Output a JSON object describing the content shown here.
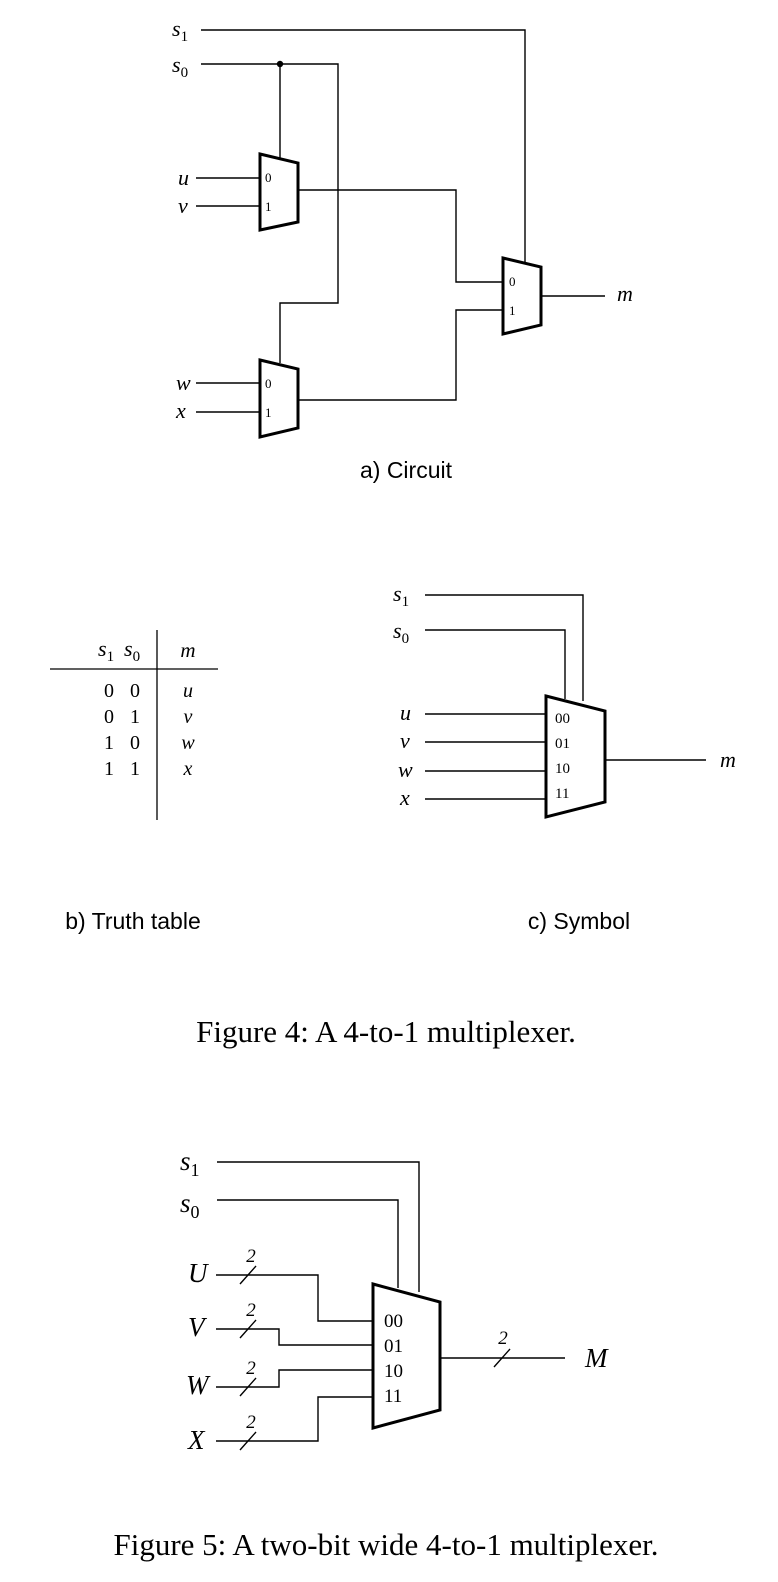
{
  "figure4": {
    "circuit": {
      "signals": {
        "s1": {
          "base": "s",
          "sub": "1"
        },
        "s0": {
          "base": "s",
          "sub": "0"
        },
        "u": "u",
        "v": "v",
        "w": "w",
        "x": "x",
        "m": "m"
      },
      "port0": "0",
      "port1": "1",
      "caption": "a) Circuit"
    },
    "truth_table": {
      "header_s1": {
        "base": "s",
        "sub": "1"
      },
      "header_s0": {
        "base": "s",
        "sub": "0"
      },
      "header_m": "m",
      "rows": [
        {
          "s1": "0",
          "s0": "0",
          "m": "u"
        },
        {
          "s1": "0",
          "s0": "1",
          "m": "v"
        },
        {
          "s1": "1",
          "s0": "0",
          "m": "w"
        },
        {
          "s1": "1",
          "s0": "1",
          "m": "x"
        }
      ],
      "caption": "b) Truth table"
    },
    "symbol": {
      "signals": {
        "s1": {
          "base": "s",
          "sub": "1"
        },
        "s0": {
          "base": "s",
          "sub": "0"
        },
        "u": "u",
        "v": "v",
        "w": "w",
        "x": "x",
        "m": "m"
      },
      "ports": [
        "00",
        "01",
        "10",
        "11"
      ],
      "caption": "c) Symbol"
    },
    "title": "Figure 4: A 4-to-1 multiplexer."
  },
  "figure5": {
    "signals": {
      "s1": {
        "base": "s",
        "sub": "1"
      },
      "s0": {
        "base": "s",
        "sub": "0"
      },
      "U": "U",
      "V": "V",
      "W": "W",
      "X": "X",
      "M": "M"
    },
    "bus_width": "2",
    "ports": [
      "00",
      "01",
      "10",
      "11"
    ],
    "title": "Figure 5: A two-bit wide 4-to-1 multiplexer."
  }
}
